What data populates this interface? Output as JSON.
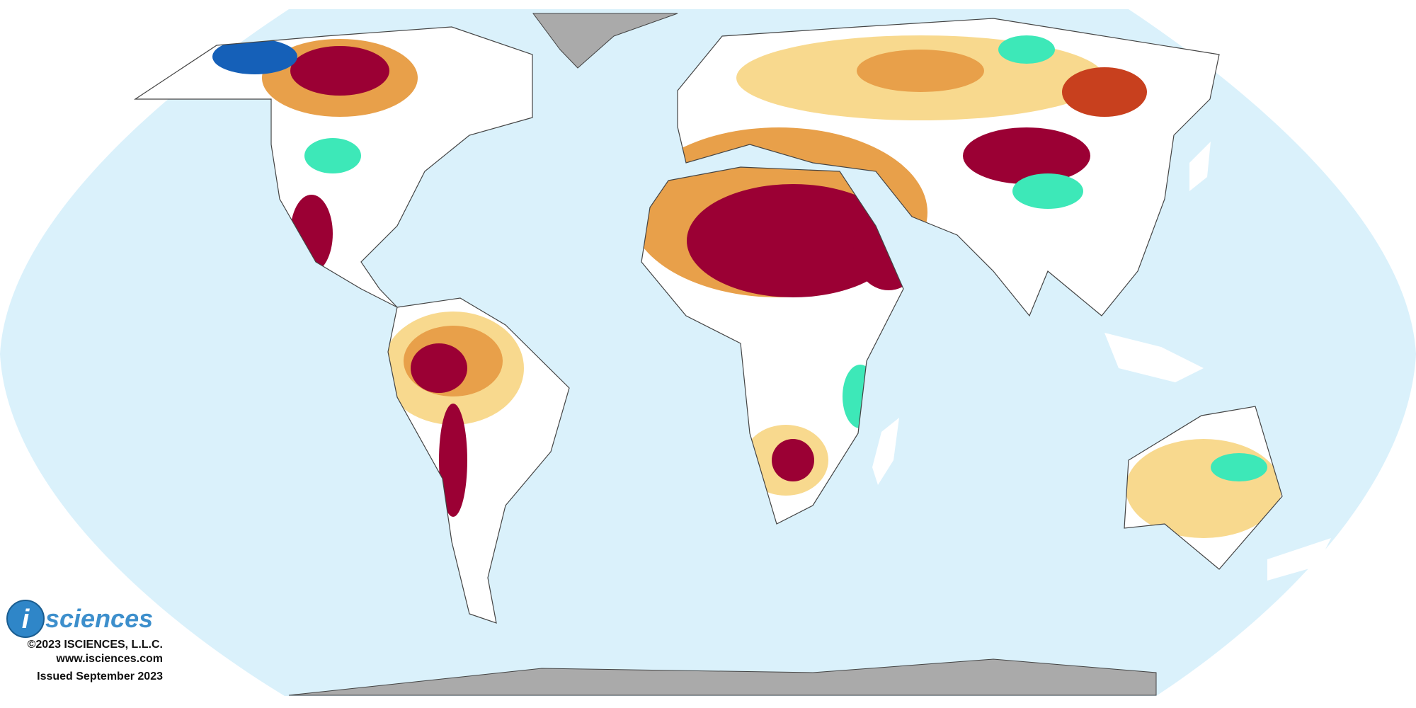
{
  "logo": {
    "mark": "i",
    "name": "sciences"
  },
  "copyright": "©2023 ISCIENCES, L.L.C.",
  "website": "www.isciences.com",
  "issued": "Issued September 2023"
}
